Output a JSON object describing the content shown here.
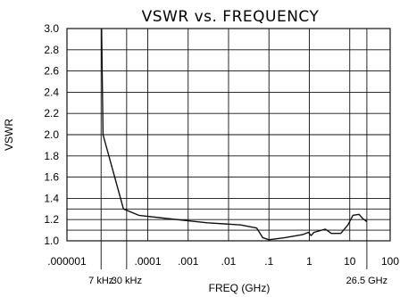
{
  "chart_data": {
    "type": "line",
    "title": "VSWR vs. FREQUENCY",
    "xlabel": "FREQ (GHz)",
    "ylabel": "VSWR",
    "x_scale": "log",
    "xlim": [
      1e-06,
      100
    ],
    "ylim": [
      1.0,
      3.0
    ],
    "grid": true,
    "x_ticks": [
      {
        "value": 1e-06,
        "label": ".000001"
      },
      {
        "value": 0.0001,
        "label": ".0001"
      },
      {
        "value": 0.001,
        "label": ".001"
      },
      {
        "value": 0.01,
        "label": ".01"
      },
      {
        "value": 0.1,
        "label": ".1"
      },
      {
        "value": 1,
        "label": "1"
      },
      {
        "value": 10,
        "label": "10"
      },
      {
        "value": 100,
        "label": "100"
      }
    ],
    "x_markers": [
      {
        "value": 7e-06,
        "label": "7 kHz"
      },
      {
        "value": 3e-05,
        "label": "30 kHz"
      },
      {
        "value": 26.5,
        "label": "26.5 GHz"
      }
    ],
    "y_ticks": [
      {
        "value": 3.0,
        "label": "3.0"
      },
      {
        "value": 2.8,
        "label": "2.8"
      },
      {
        "value": 2.6,
        "label": "2.6"
      },
      {
        "value": 2.4,
        "label": "2.4"
      },
      {
        "value": 2.2,
        "label": "2.2"
      },
      {
        "value": 2.0,
        "label": "2.0"
      },
      {
        "value": 1.8,
        "label": "1.8"
      },
      {
        "value": 1.6,
        "label": "1.6"
      },
      {
        "value": 1.4,
        "label": "1.4"
      },
      {
        "value": 1.2,
        "label": "1.2"
      },
      {
        "value": 1.0,
        "label": "1.0"
      }
    ],
    "y_gridlines": [
      1.0,
      1.1,
      1.2,
      1.3,
      1.4,
      1.6,
      1.8,
      2.0,
      2.2,
      2.4,
      2.6,
      2.8,
      3.0
    ],
    "series": [
      {
        "points": [
          [
            7.2e-06,
            3.0
          ],
          [
            7.8e-06,
            2.0
          ],
          [
            2.5e-05,
            1.3
          ],
          [
            6e-05,
            1.24
          ],
          [
            0.0003,
            1.21
          ],
          [
            0.003,
            1.17
          ],
          [
            0.02,
            1.15
          ],
          [
            0.05,
            1.12
          ],
          [
            0.07,
            1.03
          ],
          [
            0.1,
            1.01
          ],
          [
            0.25,
            1.03
          ],
          [
            0.7,
            1.06
          ],
          [
            0.95,
            1.08
          ],
          [
            1.1,
            1.05
          ],
          [
            1.3,
            1.08
          ],
          [
            2.5,
            1.11
          ],
          [
            3.5,
            1.07
          ],
          [
            6.0,
            1.07
          ],
          [
            9.0,
            1.15
          ],
          [
            12.0,
            1.24
          ],
          [
            17.0,
            1.25
          ],
          [
            21.0,
            1.21
          ],
          [
            26.5,
            1.18
          ]
        ]
      }
    ],
    "colors": {
      "line": "#111111",
      "grid": "#111111",
      "background": "#ffffff"
    }
  }
}
